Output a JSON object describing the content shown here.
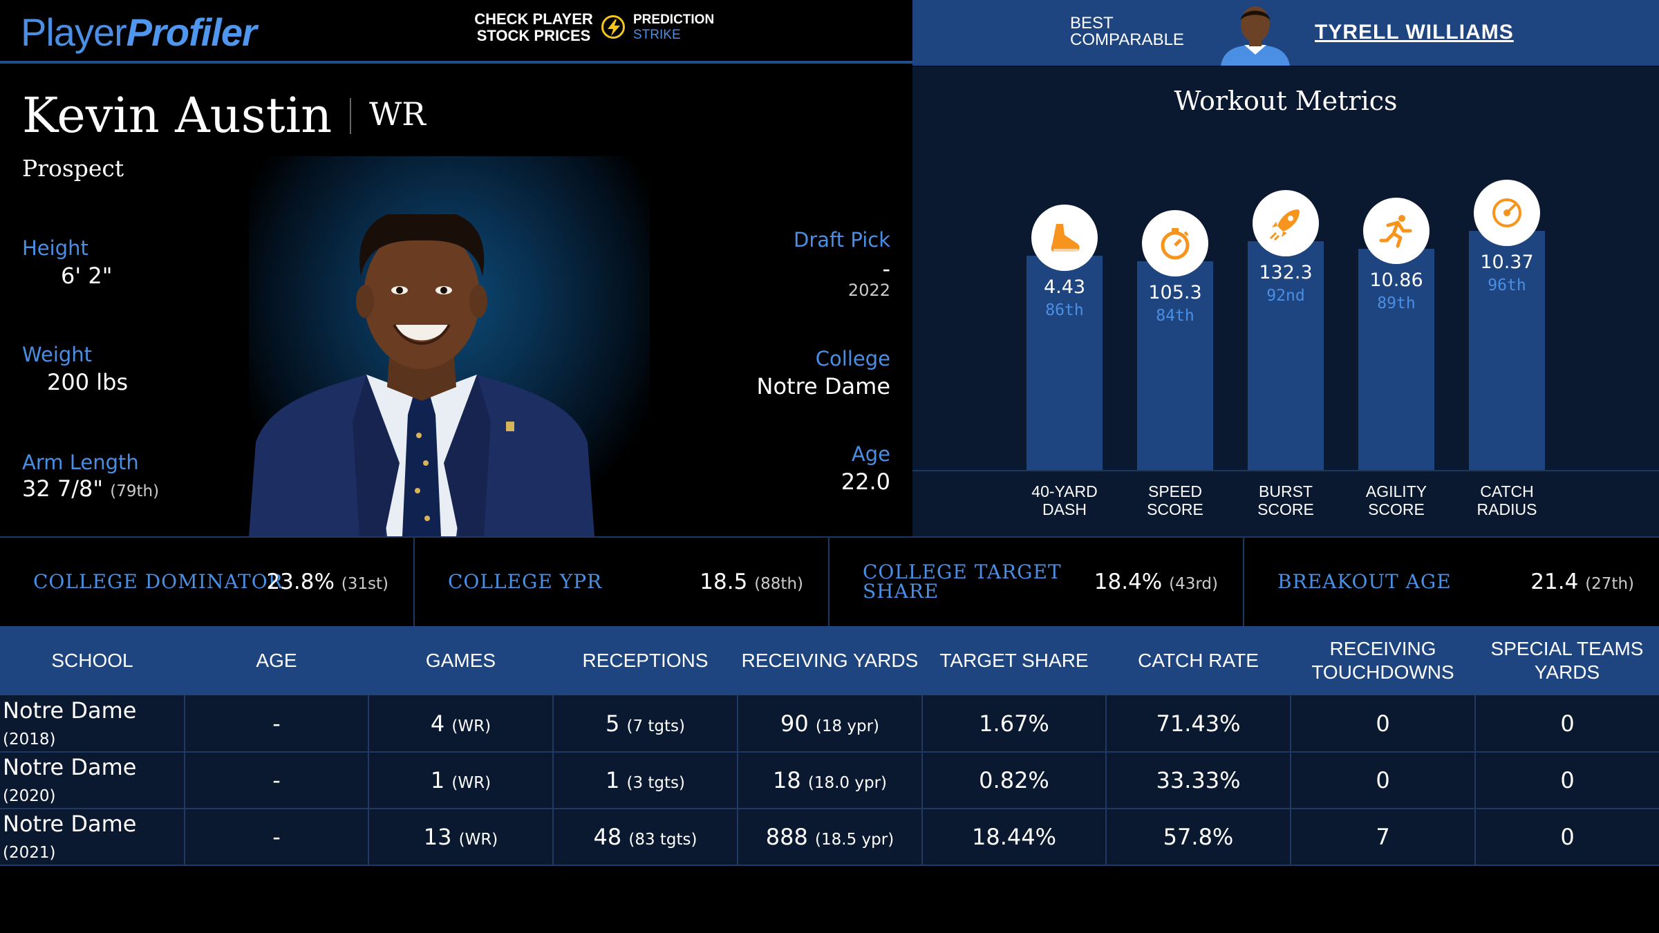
{
  "header": {
    "logo_part1": "Player",
    "logo_part2": "Profiler",
    "promo_line1": "CHECK PLAYER",
    "promo_line2": "STOCK PRICES",
    "promo_brand1": "PREDICTION",
    "promo_brand2": "STRIKE",
    "best_comparable_line1": "BEST",
    "best_comparable_line2": "COMPARABLE",
    "best_comparable_name": "TYRELL WILLIAMS"
  },
  "player": {
    "name": "Kevin Austin",
    "position": "WR",
    "status": "Prospect",
    "height_label": "Height",
    "height": "6' 2\"",
    "weight_label": "Weight",
    "weight": "200 lbs",
    "arm_label": "Arm Length",
    "arm": "32 7/8\"",
    "arm_pct": "(79th)",
    "draft_label": "Draft Pick",
    "draft_pick": "-",
    "draft_year": "2022",
    "college_label": "College",
    "college": "Notre Dame",
    "age_label": "Age",
    "age": "22.0"
  },
  "workout": {
    "title": "Workout Metrics",
    "metrics": [
      {
        "line1": "40-YARD",
        "line2": "DASH",
        "value": "4.43",
        "pct": "86th",
        "pct_num": 86,
        "icon": "shoe-icon"
      },
      {
        "line1": "SPEED",
        "line2": "SCORE",
        "value": "105.3",
        "pct": "84th",
        "pct_num": 84,
        "icon": "stopwatch-icon"
      },
      {
        "line1": "BURST",
        "line2": "SCORE",
        "value": "132.3",
        "pct": "92nd",
        "pct_num": 92,
        "icon": "rocket-icon"
      },
      {
        "line1": "AGILITY",
        "line2": "SCORE",
        "value": "10.86",
        "pct": "89th",
        "pct_num": 89,
        "icon": "runner-icon"
      },
      {
        "line1": "CATCH",
        "line2": "RADIUS",
        "value": "10.37",
        "pct": "96th",
        "pct_num": 96,
        "icon": "target-icon"
      }
    ]
  },
  "college_metrics": [
    {
      "label1": "COLLEGE DOMINATOR",
      "label2": "",
      "value": "23.8%",
      "pct": "(31st)"
    },
    {
      "label1": "COLLEGE YPR",
      "label2": "",
      "value": "18.5",
      "pct": "(88th)"
    },
    {
      "label1": "COLLEGE TARGET",
      "label2": "SHARE",
      "value": "18.4%",
      "pct": "(43rd)"
    },
    {
      "label1": "BREAKOUT AGE",
      "label2": "",
      "value": "21.4",
      "pct": "(27th)"
    }
  ],
  "table": {
    "headers": [
      "SCHOOL",
      "AGE",
      "GAMES",
      "RECEPTIONS",
      "RECEIVING YARDS",
      "TARGET SHARE",
      "CATCH RATE",
      "RECEIVING TOUCHDOWNS",
      "SPECIAL TEAMS YARDS"
    ],
    "rows": [
      {
        "school": "Notre Dame",
        "year": "(2018)",
        "age": "-",
        "games": "4",
        "games_sub": "(WR)",
        "rec": "5",
        "rec_sub": "(7 tgts)",
        "yards": "90",
        "yards_sub": "(18 ypr)",
        "target_share": "1.67%",
        "catch_rate": "71.43%",
        "tds": "0",
        "st_yards": "0"
      },
      {
        "school": "Notre Dame",
        "year": "(2020)",
        "age": "-",
        "games": "1",
        "games_sub": "(WR)",
        "rec": "1",
        "rec_sub": "(3 tgts)",
        "yards": "18",
        "yards_sub": "(18.0 ypr)",
        "target_share": "0.82%",
        "catch_rate": "33.33%",
        "tds": "0",
        "st_yards": "0"
      },
      {
        "school": "Notre Dame",
        "year": "(2021)",
        "age": "-",
        "games": "13",
        "games_sub": "(WR)",
        "rec": "48",
        "rec_sub": "(83 tgts)",
        "yards": "888",
        "yards_sub": "(18.5 ypr)",
        "target_share": "18.44%",
        "catch_rate": "57.8%",
        "tds": "7",
        "st_yards": "0"
      }
    ]
  },
  "colors": {
    "accent_blue": "#4a8fe3",
    "bar_blue": "#1e4580",
    "icon_orange": "#f7941d",
    "strike_yellow": "#f5c518"
  }
}
